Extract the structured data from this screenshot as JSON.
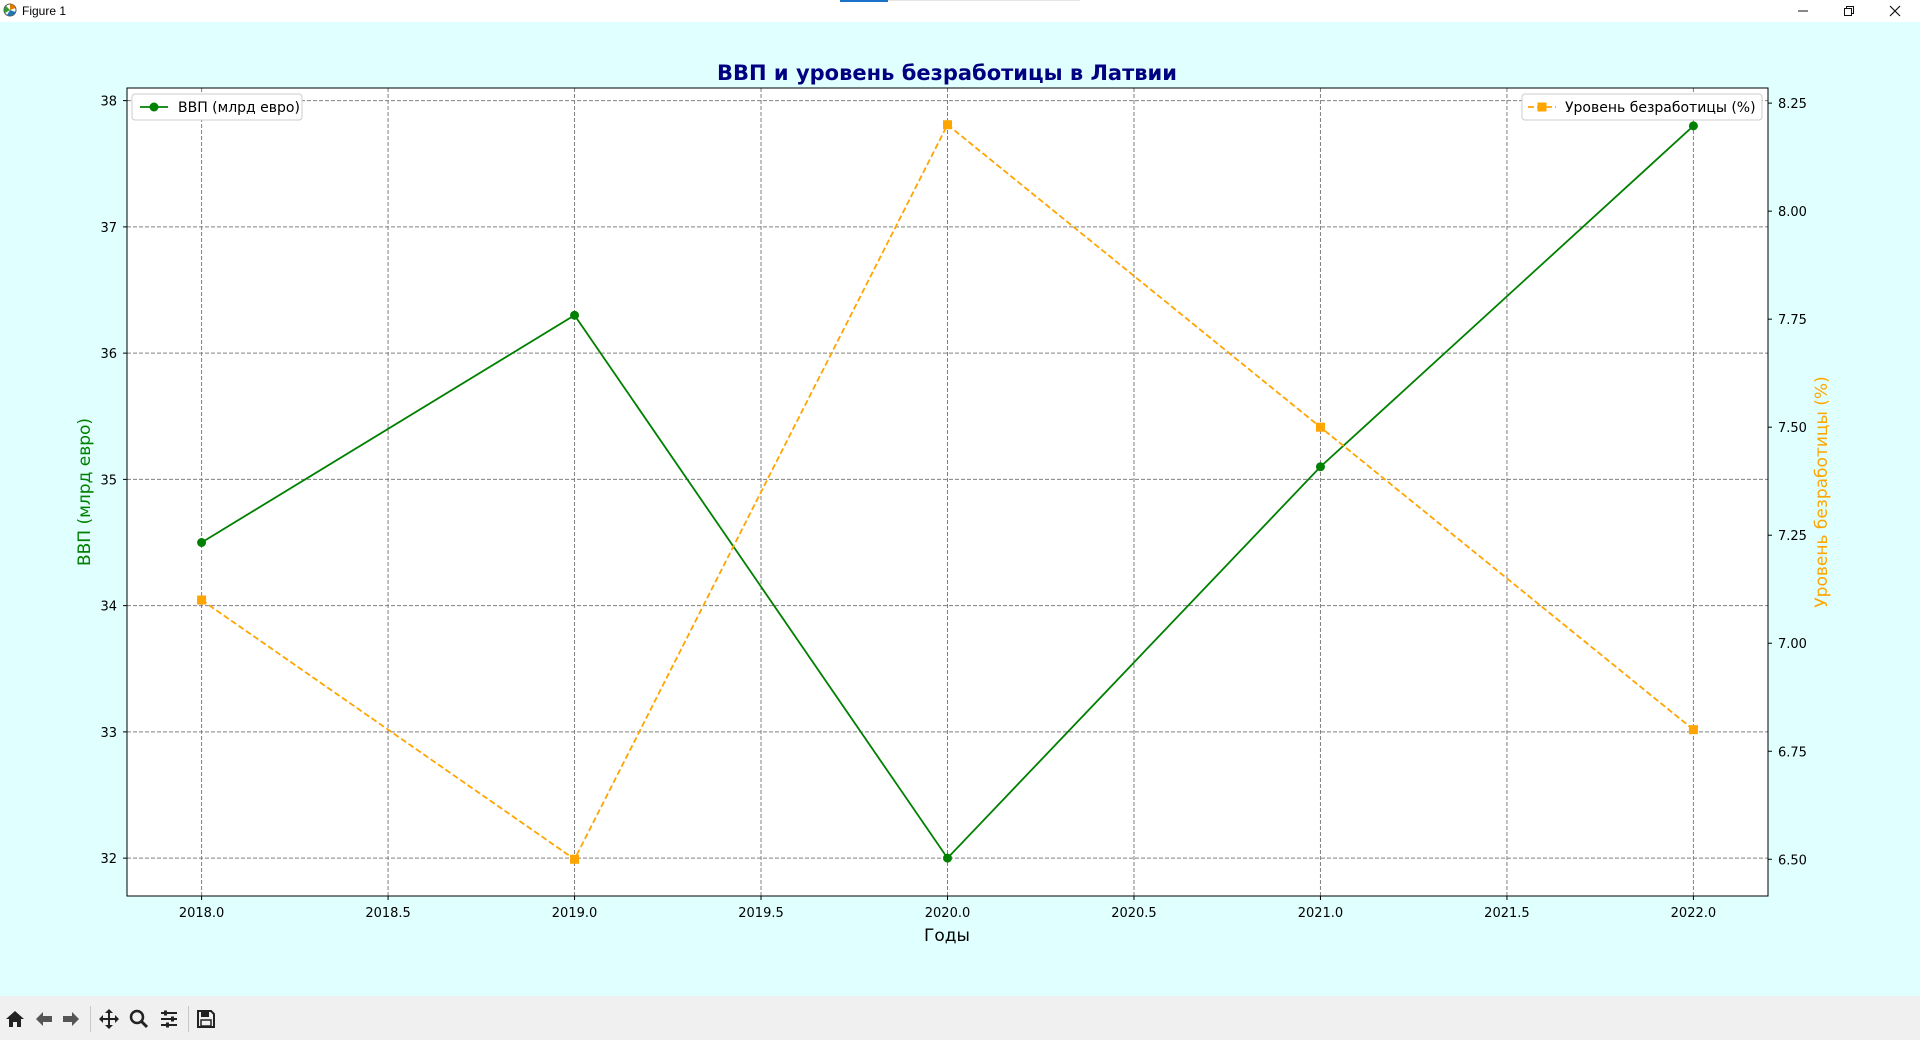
{
  "window": {
    "title": "Figure 1",
    "icon": "matplotlib-icon",
    "controls": [
      "minimize-icon",
      "restore-icon",
      "close-icon"
    ]
  },
  "toolbar": {
    "tools": [
      "home-icon",
      "back-arrow-icon",
      "forward-arrow-icon",
      "pan-icon",
      "zoom-icon",
      "configure-subplots-icon",
      "save-icon"
    ]
  },
  "colors": {
    "figure_bg": "#e0ffff",
    "gdp": "#008000",
    "unemployment": "#ffa500",
    "title": "#000080",
    "grid": "#808080"
  },
  "chart_data": {
    "type": "line",
    "title": "ВВП и уровень безработицы в Латвии",
    "xlabel": "Годы",
    "ylabel_left": "ВВП (млрд евро)",
    "ylabel_right": "Уровень безработицы (%)",
    "x": [
      2018,
      2019,
      2020,
      2021,
      2022
    ],
    "xlim": [
      2017.8,
      2022.2
    ],
    "xticks": [
      "2018.0",
      "2018.5",
      "2019.0",
      "2019.5",
      "2020.0",
      "2020.5",
      "2021.0",
      "2021.5",
      "2022.0"
    ],
    "ylim_left": [
      31.7,
      38.1
    ],
    "yticks_left": [
      "32",
      "33",
      "34",
      "35",
      "36",
      "37",
      "38"
    ],
    "ylim_right": [
      6.415,
      8.285
    ],
    "yticks_right": [
      "6.50",
      "6.75",
      "7.00",
      "7.25",
      "7.50",
      "7.75",
      "8.00",
      "8.25"
    ],
    "grid": true,
    "series": [
      {
        "name": "ВВП (млрд евро)",
        "axis": "left",
        "values": [
          34.5,
          36.3,
          32.0,
          35.1,
          37.8
        ],
        "marker": "circle",
        "linestyle": "solid",
        "legend": "top-left"
      },
      {
        "name": "Уровень безработицы (%)",
        "axis": "right",
        "values": [
          7.1,
          6.5,
          8.2,
          7.5,
          6.8
        ],
        "marker": "square",
        "linestyle": "dashed",
        "legend": "top-right"
      }
    ]
  }
}
